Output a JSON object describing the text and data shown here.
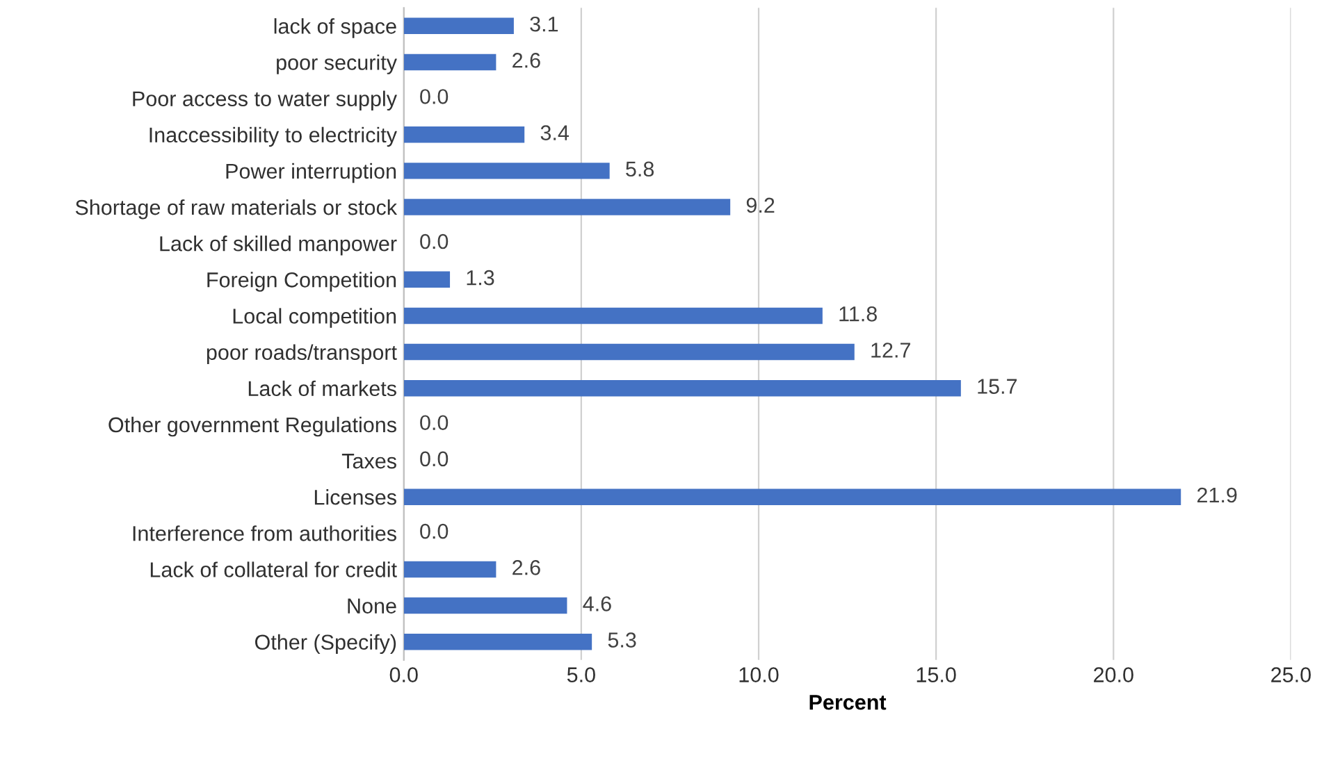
{
  "chart_data": {
    "type": "bar",
    "orientation": "horizontal",
    "xlabel": "Percent",
    "categories": [
      "lack of space",
      "poor security",
      "Poor access to water supply",
      "Inaccessibility to electricity",
      "Power interruption",
      "Shortage of raw materials or stock",
      "Lack of skilled manpower",
      "Foreign Competition",
      "Local competition",
      "poor roads/transport",
      "Lack of markets",
      "Other government Regulations",
      "Taxes",
      "Licenses",
      "Interference from authorities",
      "Lack of collateral for credit",
      "None",
      "Other (Specify)"
    ],
    "values": [
      3.1,
      2.6,
      0.0,
      3.4,
      5.8,
      9.2,
      0.0,
      1.3,
      11.8,
      12.7,
      15.7,
      0.0,
      0.0,
      21.9,
      0.0,
      2.6,
      4.6,
      5.3
    ],
    "value_labels": [
      "3.1",
      "2.6",
      "0.0",
      "3.4",
      "5.8",
      "9.2",
      "0.0",
      "1.3",
      "11.8",
      "12.7",
      "15.7",
      "0.0",
      "0.0",
      "21.9",
      "0.0",
      "2.6",
      "4.6",
      "5.3"
    ],
    "color": "#4472c4",
    "xlim": [
      0,
      25
    ],
    "xticks": [
      {
        "value": 0,
        "label": "0.0"
      },
      {
        "value": 5,
        "label": "5.0"
      },
      {
        "value": 10,
        "label": "10.0"
      },
      {
        "value": 15,
        "label": "15.0"
      },
      {
        "value": 20,
        "label": "20.0"
      },
      {
        "value": 25,
        "label": "25.0"
      }
    ],
    "grid": "x"
  }
}
